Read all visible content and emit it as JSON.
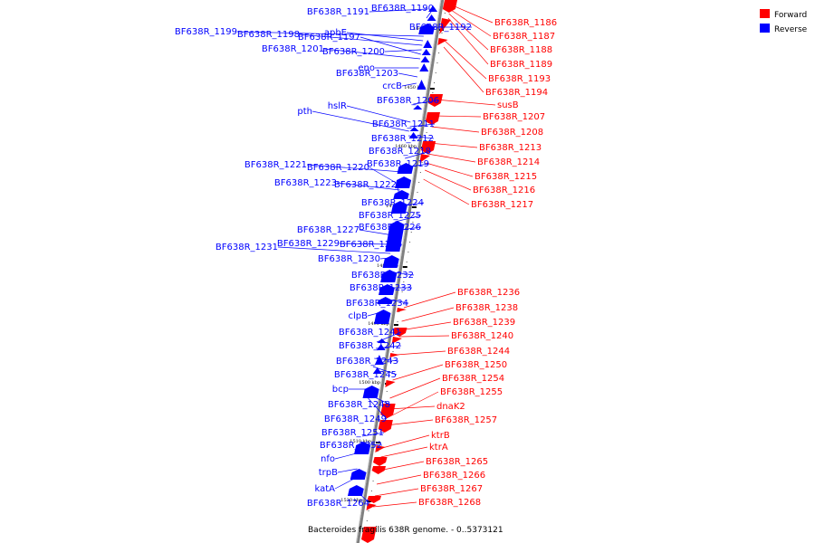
{
  "caption": "Bacteroides fragilis 638R genome. - 0..5373121",
  "legend": [
    {
      "label": "Forward",
      "color": "#ff0000"
    },
    {
      "label": "Reverse",
      "color": "#0000ff"
    }
  ],
  "colors": {
    "forward": "#ff0000",
    "reverse": "#0000ff",
    "backbone": "#808080"
  },
  "ticks": [
    "1440 kbp",
    "1450 kbp",
    "1460 kbp",
    "1470 kbp",
    "1480 kbp",
    "1490 kbp",
    "1500 kbp",
    "1510 kbp",
    "1520 kbp"
  ],
  "forward_genes": [
    "BF638R_1186",
    "BF638R_1187",
    "BF638R_1188",
    "BF638R_1189",
    "BF638R_1193",
    "BF638R_1194",
    "susB",
    "BF638R_1207",
    "BF638R_1208",
    "BF638R_1213",
    "BF638R_1214",
    "BF638R_1215",
    "BF638R_1216",
    "BF638R_1217",
    "BF638R_1236",
    "BF638R_1238",
    "BF638R_1239",
    "BF638R_1240",
    "BF638R_1244",
    "BF638R_1250",
    "BF638R_1254",
    "BF638R_1255",
    "dnaK2",
    "BF638R_1257",
    "ktrB",
    "ktrA",
    "BF638R_1265",
    "BF638R_1266",
    "BF638R_1267",
    "BF638R_1268"
  ],
  "reverse_genes": [
    "BF638R_1191",
    "BF638R_1190",
    "BF638R_1192",
    "BF638R_1199",
    "BF638R_1198",
    "BF638R_1197",
    "apbE",
    "BF638R_1201",
    "BF638R_1200",
    "eno",
    "BF638R_1203",
    "crcB",
    "BF638R_1206",
    "hslR",
    "pth",
    "BF638R_1211",
    "BF638R_1212",
    "BF638R_1218",
    "BF638R_1221",
    "BF638R_1220",
    "BF638R_1219",
    "BF638R_1223",
    "BF638R_1222",
    "BF638R_1224",
    "BF638R_1225",
    "BF638R_1226",
    "BF638R_1227",
    "BF638R_1229",
    "BF638R_1228",
    "BF638R_1231",
    "BF638R_1230",
    "BF638R_1232",
    "BF638R_1233",
    "BF638R_1234",
    "clpB",
    "BF638R_1241",
    "BF638R_1242",
    "BF638R_1243",
    "BF638R_1245",
    "bcp",
    "BF638R_1248",
    "BF638R_1249",
    "BF638R_1251",
    "BF638R_1252",
    "nfo",
    "trpB",
    "katA",
    "BF638R_1264"
  ]
}
